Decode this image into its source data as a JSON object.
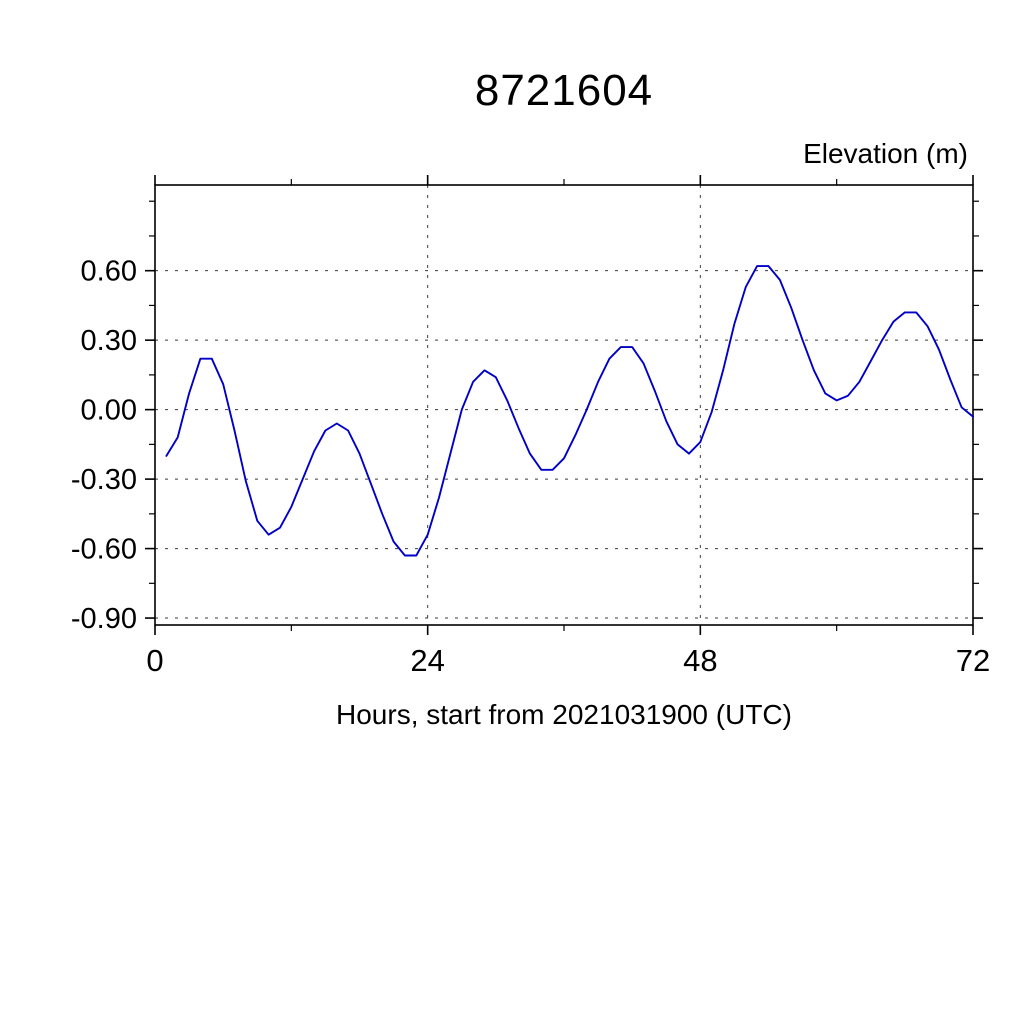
{
  "title": "8721604",
  "y_axis_title": "Elevation (m)",
  "x_axis_label": "Hours, start from 2021031900 (UTC)",
  "chart_data": {
    "type": "line",
    "title": "8721604",
    "xlabel": "Hours, start from 2021031900 (UTC)",
    "ylabel": "Elevation (m)",
    "xlim": [
      0,
      72
    ],
    "ylim": [
      -0.93,
      0.97
    ],
    "x_ticks": [
      0,
      24,
      48,
      72
    ],
    "x_tick_labels": [
      "0",
      "24",
      "48",
      "72"
    ],
    "x_minor_ticks": [
      12,
      36,
      60
    ],
    "y_ticks": [
      -0.9,
      -0.6,
      -0.3,
      0.0,
      0.3,
      0.6
    ],
    "y_tick_labels": [
      "-0.90",
      "-0.60",
      "-0.30",
      "0.00",
      "0.30",
      "0.60"
    ],
    "y_minor_ticks": [
      -0.75,
      -0.45,
      -0.15,
      0.15,
      0.45,
      0.75,
      0.9
    ],
    "x_grid": [
      24,
      48
    ],
    "grid": true,
    "legend": "none",
    "line_color": "#0000c8",
    "series": [
      {
        "name": "elevation",
        "x": [
          1,
          2,
          3,
          4,
          5,
          6,
          7,
          8,
          9,
          10,
          11,
          12,
          13,
          14,
          15,
          16,
          17,
          18,
          19,
          20,
          21,
          22,
          23,
          24,
          25,
          26,
          27,
          28,
          29,
          30,
          31,
          32,
          33,
          34,
          35,
          36,
          37,
          38,
          39,
          40,
          41,
          42,
          43,
          44,
          45,
          46,
          47,
          48,
          49,
          50,
          51,
          52,
          53,
          54,
          55,
          56,
          57,
          58,
          59,
          60,
          61,
          62,
          63,
          64,
          65,
          66,
          67,
          68,
          69,
          70,
          71,
          72
        ],
        "y": [
          -0.2,
          -0.12,
          0.07,
          0.22,
          0.22,
          0.11,
          -0.09,
          -0.31,
          -0.48,
          -0.54,
          -0.51,
          -0.42,
          -0.3,
          -0.18,
          -0.09,
          -0.06,
          -0.09,
          -0.19,
          -0.32,
          -0.45,
          -0.57,
          -0.63,
          -0.63,
          -0.54,
          -0.38,
          -0.19,
          0.0,
          0.12,
          0.17,
          0.14,
          0.04,
          -0.08,
          -0.19,
          -0.26,
          -0.26,
          -0.21,
          -0.11,
          0.0,
          0.12,
          0.22,
          0.27,
          0.27,
          0.2,
          0.08,
          -0.05,
          -0.15,
          -0.19,
          -0.14,
          -0.01,
          0.17,
          0.37,
          0.53,
          0.62,
          0.62,
          0.56,
          0.44,
          0.3,
          0.17,
          0.07,
          0.04,
          0.06,
          0.12,
          0.21,
          0.3,
          0.38,
          0.42,
          0.42,
          0.36,
          0.26,
          0.13,
          0.01,
          -0.03
        ]
      }
    ]
  }
}
